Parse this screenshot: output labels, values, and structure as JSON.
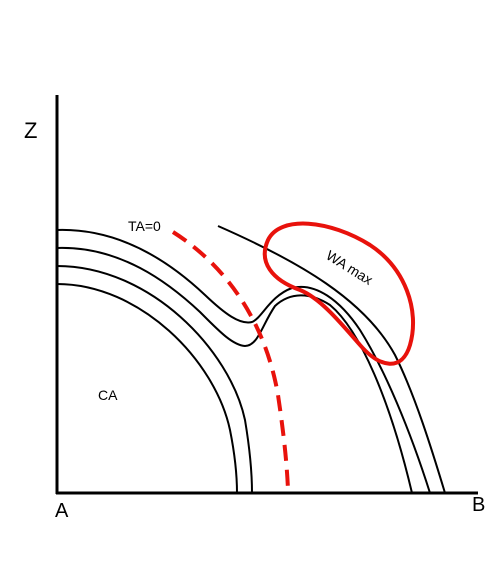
{
  "axes": {
    "y_label": "Z",
    "x_start_label": "A",
    "x_end_label": "B"
  },
  "regions": {
    "inner": "CA",
    "boundary": "TA=0",
    "highlight": "WA max"
  }
}
